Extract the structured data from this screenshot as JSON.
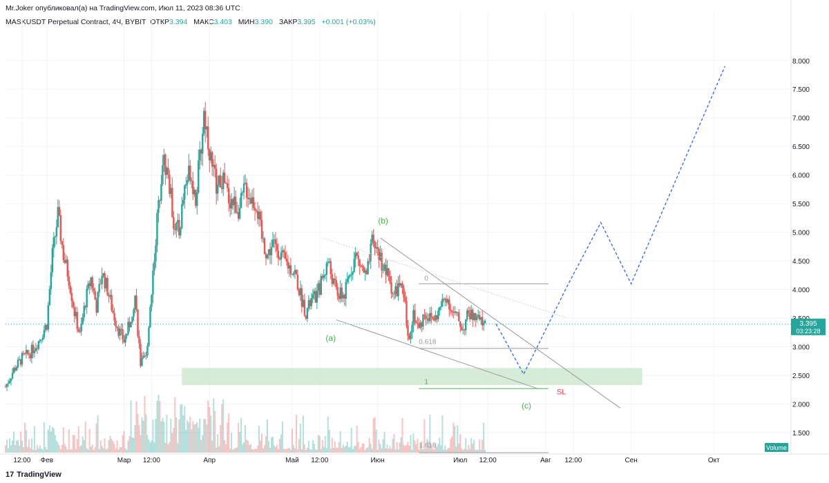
{
  "header": {
    "publisher_line": "Mr.Joker опубликовал(а) на TradingView.com, Июл 11, 2023 08:36 UTC",
    "symbol": "MASKUSDT Perpetual Contract, 4Ч, BYBIT",
    "ohlc": [
      {
        "label": "ОТКР",
        "value": "3.394"
      },
      {
        "label": "МАКС",
        "value": "3.403"
      },
      {
        "label": "МИН",
        "value": "3.390"
      },
      {
        "label": "ЗАКР",
        "value": "3.395"
      }
    ],
    "change": "+0.001 (+0.03%)"
  },
  "footer": {
    "brand": "TradingView",
    "logo_glyph": "17"
  },
  "colors": {
    "up": "#26a69a",
    "down": "#ef5350",
    "grid": "#f0f3fa",
    "projection": "#2962ff",
    "zone": "#c8e6c9",
    "label_green": "#4caf50",
    "sl": "#f23645",
    "trend": "#9598a1"
  },
  "chart_data": {
    "type": "candlestick",
    "title": "MASKUSDT Perpetual Contract, 4Ч, BYBIT",
    "y_axis": {
      "ticks": [
        "8.000",
        "7.500",
        "7.000",
        "6.500",
        "6.000",
        "5.500",
        "5.000",
        "4.500",
        "4.000",
        "3.500",
        "3.000",
        "2.500",
        "2.000",
        "1.500"
      ],
      "range": [
        1.15,
        8.6
      ]
    },
    "x_axis": {
      "range_days": [
        0,
        285
      ],
      "ticks": [
        {
          "label": "12:00",
          "day": 6
        },
        {
          "label": "Фев",
          "day": 15
        },
        {
          "label": "Мар",
          "day": 43
        },
        {
          "label": "12:00",
          "day": 53
        },
        {
          "label": "Апр",
          "day": 74
        },
        {
          "label": "Май",
          "day": 104
        },
        {
          "label": "12:00",
          "day": 114
        },
        {
          "label": "Июн",
          "day": 135
        },
        {
          "label": "Июл",
          "day": 165
        },
        {
          "label": "12:00",
          "day": 175
        },
        {
          "label": "Авг",
          "day": 196
        },
        {
          "label": "12:00",
          "day": 206
        },
        {
          "label": "Сен",
          "day": 227
        },
        {
          "label": "Окт",
          "day": 257
        }
      ]
    },
    "price_path": [
      [
        0,
        2.3
      ],
      [
        3,
        2.6
      ],
      [
        6,
        2.8
      ],
      [
        9,
        2.9
      ],
      [
        12,
        3.1
      ],
      [
        15,
        3.4
      ],
      [
        17,
        4.6
      ],
      [
        19,
        5.3
      ],
      [
        21,
        4.6
      ],
      [
        23,
        4.2
      ],
      [
        25,
        3.6
      ],
      [
        27,
        3.2
      ],
      [
        29,
        3.8
      ],
      [
        31,
        4.2
      ],
      [
        33,
        3.7
      ],
      [
        35,
        4.3
      ],
      [
        37,
        4.0
      ],
      [
        39,
        3.6
      ],
      [
        41,
        3.3
      ],
      [
        43,
        3.1
      ],
      [
        45,
        3.4
      ],
      [
        47,
        3.9
      ],
      [
        49,
        2.7
      ],
      [
        51,
        2.8
      ],
      [
        53,
        4.0
      ],
      [
        55,
        5.2
      ],
      [
        57,
        6.3
      ],
      [
        59,
        6.0
      ],
      [
        61,
        5.2
      ],
      [
        63,
        5.0
      ],
      [
        65,
        5.8
      ],
      [
        67,
        6.1
      ],
      [
        69,
        5.6
      ],
      [
        71,
        6.5
      ],
      [
        72,
        7.1
      ],
      [
        73,
        6.8
      ],
      [
        75,
        6.1
      ],
      [
        77,
        5.8
      ],
      [
        79,
        5.9
      ],
      [
        81,
        5.6
      ],
      [
        83,
        5.5
      ],
      [
        85,
        5.4
      ],
      [
        87,
        5.8
      ],
      [
        89,
        5.6
      ],
      [
        91,
        5.5
      ],
      [
        93,
        4.9
      ],
      [
        95,
        4.6
      ],
      [
        97,
        4.8
      ],
      [
        99,
        4.7
      ],
      [
        101,
        4.5
      ],
      [
        103,
        4.4
      ],
      [
        105,
        4.3
      ],
      [
        107,
        3.9
      ],
      [
        109,
        3.6
      ],
      [
        111,
        3.8
      ],
      [
        113,
        3.9
      ],
      [
        115,
        4.2
      ],
      [
        117,
        4.5
      ],
      [
        119,
        4.1
      ],
      [
        121,
        3.9
      ],
      [
        123,
        3.9
      ],
      [
        125,
        4.3
      ],
      [
        127,
        4.6
      ],
      [
        129,
        4.4
      ],
      [
        131,
        4.2
      ],
      [
        133,
        4.8
      ],
      [
        135,
        4.7
      ],
      [
        137,
        4.4
      ],
      [
        139,
        4.2
      ],
      [
        141,
        3.9
      ],
      [
        143,
        4.1
      ],
      [
        145,
        3.7
      ],
      [
        146,
        3.1
      ],
      [
        148,
        3.6
      ],
      [
        150,
        3.3
      ],
      [
        152,
        3.6
      ],
      [
        154,
        3.5
      ],
      [
        156,
        3.5
      ],
      [
        158,
        3.7
      ],
      [
        160,
        3.9
      ],
      [
        162,
        3.6
      ],
      [
        164,
        3.5
      ],
      [
        166,
        3.3
      ],
      [
        168,
        3.6
      ],
      [
        170,
        3.5
      ],
      [
        172,
        3.45
      ],
      [
        174,
        3.395
      ]
    ],
    "volume_note": "volume bars along bottom (series hidden name: Volume)",
    "current_price": {
      "value": "3.395",
      "countdown": "03:23:28"
    },
    "annotations": {
      "wave_labels": [
        {
          "text": "(b)",
          "day": 137,
          "price": 5.15
        },
        {
          "text": "(a)",
          "day": 118,
          "price": 3.1
        },
        {
          "text": "(c)",
          "day": 189,
          "price": 1.92
        }
      ],
      "fib_labels": [
        {
          "text": "0",
          "day": 152,
          "price": 4.16
        },
        {
          "text": "0.618",
          "day": 150,
          "price": 3.05
        },
        {
          "text": "1",
          "day": 152,
          "price": 2.35
        },
        {
          "text": "1.618",
          "day": 150,
          "price": 1.24
        }
      ],
      "stop_loss": {
        "text": "SL",
        "day": 200,
        "price": 2.17
      },
      "volume_label": "Volume"
    },
    "levels": {
      "fib_0": 4.1,
      "fib_0618": 2.97,
      "fib_1": 2.27,
      "fib_1618": 1.15,
      "support_zone": [
        2.33,
        2.63
      ]
    },
    "trendlines": {
      "upper": [
        [
          136,
          4.9
        ],
        [
          223,
          1.93
        ]
      ],
      "lower": [
        [
          120,
          3.47
        ],
        [
          193,
          2.27
        ]
      ],
      "fan_upper": [
        [
          115,
          4.9
        ],
        [
          204,
          3.5
        ]
      ]
    },
    "projection": [
      [
        178,
        3.4
      ],
      [
        188,
        2.52
      ],
      [
        204,
        4.08
      ],
      [
        216,
        5.17
      ],
      [
        227,
        4.1
      ],
      [
        261,
        7.9
      ]
    ]
  }
}
